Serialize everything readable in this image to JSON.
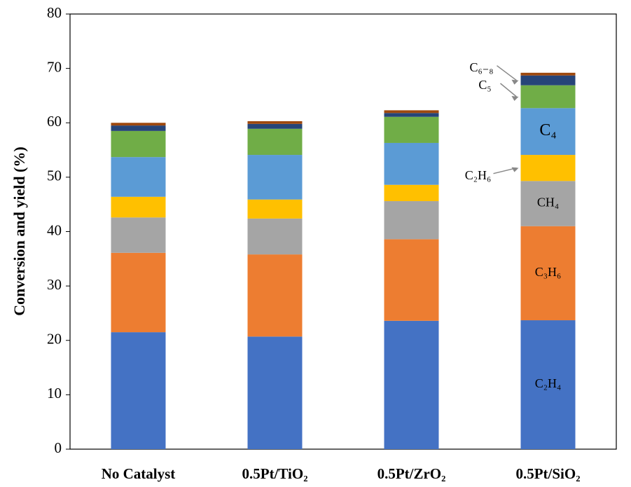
{
  "chart_data": {
    "type": "stacked_bar",
    "y_label": "Conversion and yield (%)",
    "categories": [
      "No Catalyst",
      "0.5Pt/TiO₂",
      "0.5Pt/ZrO₂",
      "0.5Pt/SiO₂"
    ],
    "series": [
      {
        "name": "C₂H₄",
        "color": "#4472c4",
        "values": [
          21.5,
          20.7,
          23.6,
          23.7
        ]
      },
      {
        "name": "C₃H₆",
        "color": "#ed7d31",
        "values": [
          14.6,
          15.1,
          15.0,
          17.3
        ]
      },
      {
        "name": "CH₄",
        "color": "#a5a5a5",
        "values": [
          6.5,
          6.6,
          7.0,
          8.3
        ]
      },
      {
        "name": "C₂H₆",
        "color": "#ffc000",
        "values": [
          3.8,
          3.5,
          3.0,
          4.8
        ]
      },
      {
        "name": "C₄",
        "color": "#5b9bd5",
        "values": [
          7.3,
          8.2,
          7.7,
          8.6
        ]
      },
      {
        "name": "C₅",
        "color": "#70ad47",
        "values": [
          4.8,
          4.8,
          4.8,
          4.2
        ]
      },
      {
        "name": "C₆₋₈",
        "color": "#264478",
        "values": [
          1.0,
          0.9,
          0.7,
          1.8
        ]
      },
      {
        "color": "#9e480e",
        "values": [
          0.5,
          0.5,
          0.5,
          0.5
        ]
      }
    ],
    "ylim": [
      0,
      80
    ],
    "yticks": [
      0,
      10,
      20,
      30,
      40,
      50,
      60,
      70,
      80
    ],
    "grid": false
  }
}
